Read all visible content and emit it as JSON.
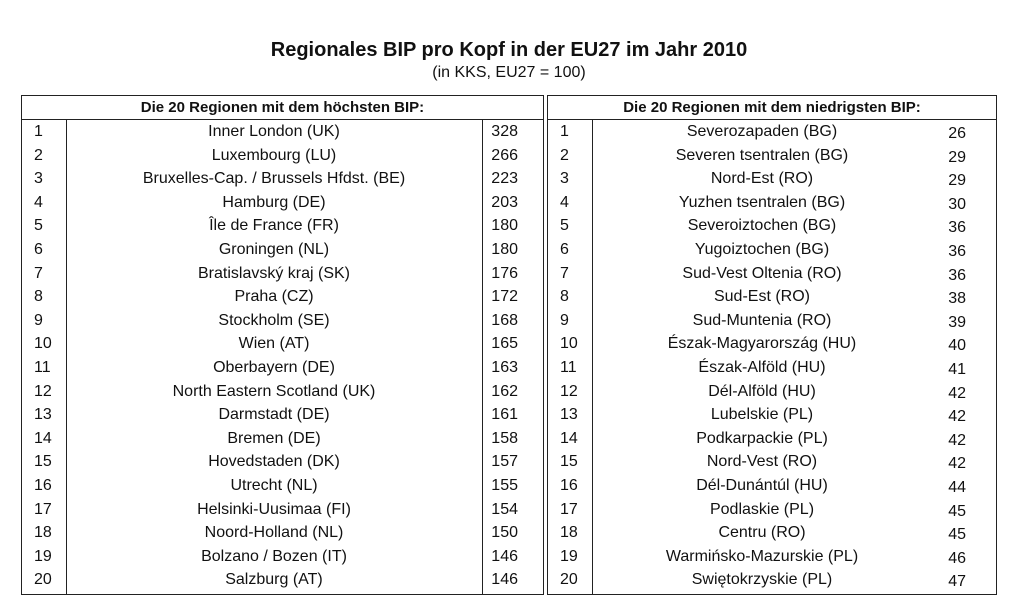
{
  "title": "Regionales BIP pro Kopf in der EU27 im Jahr 2010",
  "subtitle": "(in KKS, EU27 = 100)",
  "highest": {
    "header": "Die 20 Regionen mit dem höchsten BIP:",
    "rows": [
      {
        "rank": "1",
        "region": "Inner London (UK)",
        "value": "328"
      },
      {
        "rank": "2",
        "region": "Luxembourg (LU)",
        "value": "266"
      },
      {
        "rank": "3",
        "region": "Bruxelles-Cap. / Brussels Hfdst. (BE)",
        "value": "223"
      },
      {
        "rank": "4",
        "region": "Hamburg (DE)",
        "value": "203"
      },
      {
        "rank": "5",
        "region": "Île de France (FR)",
        "value": "180"
      },
      {
        "rank": "6",
        "region": "Groningen (NL)",
        "value": "180"
      },
      {
        "rank": "7",
        "region": "Bratislavský kraj (SK)",
        "value": "176"
      },
      {
        "rank": "8",
        "region": "Praha (CZ)",
        "value": "172"
      },
      {
        "rank": "9",
        "region": "Stockholm (SE)",
        "value": "168"
      },
      {
        "rank": "10",
        "region": "Wien (AT)",
        "value": "165"
      },
      {
        "rank": "11",
        "region": "Oberbayern (DE)",
        "value": "163"
      },
      {
        "rank": "12",
        "region": "North Eastern Scotland (UK)",
        "value": "162"
      },
      {
        "rank": "13",
        "region": "Darmstadt (DE)",
        "value": "161"
      },
      {
        "rank": "14",
        "region": "Bremen (DE)",
        "value": "158"
      },
      {
        "rank": "15",
        "region": "Hovedstaden (DK)",
        "value": "157"
      },
      {
        "rank": "16",
        "region": "Utrecht (NL)",
        "value": "155"
      },
      {
        "rank": "17",
        "region": "Helsinki-Uusimaa (FI)",
        "value": "154"
      },
      {
        "rank": "18",
        "region": "Noord-Holland (NL)",
        "value": "150"
      },
      {
        "rank": "19",
        "region": "Bolzano / Bozen (IT)",
        "value": "146"
      },
      {
        "rank": "20",
        "region": "Salzburg (AT)",
        "value": "146"
      }
    ]
  },
  "lowest": {
    "header": "Die 20 Regionen mit dem niedrigsten BIP:",
    "rows": [
      {
        "rank": "1",
        "region": "Severozapaden (BG)",
        "value": "26"
      },
      {
        "rank": "2",
        "region": "Severen tsentralen (BG)",
        "value": "29"
      },
      {
        "rank": "3",
        "region": "Nord-Est (RO)",
        "value": "29"
      },
      {
        "rank": "4",
        "region": "Yuzhen tsentralen (BG)",
        "value": "30"
      },
      {
        "rank": "5",
        "region": "Severoiztochen (BG)",
        "value": "36"
      },
      {
        "rank": "6",
        "region": "Yugoiztochen (BG)",
        "value": "36"
      },
      {
        "rank": "7",
        "region": "Sud-Vest Oltenia (RO)",
        "value": "36"
      },
      {
        "rank": "8",
        "region": "Sud-Est (RO)",
        "value": "38"
      },
      {
        "rank": "9",
        "region": "Sud-Muntenia (RO)",
        "value": "39"
      },
      {
        "rank": "10",
        "region": "Észak-Magyarország (HU)",
        "value": "40"
      },
      {
        "rank": "11",
        "region": "Észak-Alföld (HU)",
        "value": "41"
      },
      {
        "rank": "12",
        "region": "Dél-Alföld (HU)",
        "value": "42"
      },
      {
        "rank": "13",
        "region": "Lubelskie (PL)",
        "value": "42"
      },
      {
        "rank": "14",
        "region": "Podkarpackie (PL)",
        "value": "42"
      },
      {
        "rank": "15",
        "region": "Nord-Vest (RO)",
        "value": "42"
      },
      {
        "rank": "16",
        "region": "Dél-Dunántúl (HU)",
        "value": "44"
      },
      {
        "rank": "17",
        "region": "Podlaskie (PL)",
        "value": "45"
      },
      {
        "rank": "18",
        "region": "Centru (RO)",
        "value": "45"
      },
      {
        "rank": "19",
        "region": "Warmińsko-Mazurskie (PL)",
        "value": "46"
      },
      {
        "rank": "20",
        "region": "Swiętokrzyskie (PL)",
        "value": "47"
      }
    ]
  }
}
